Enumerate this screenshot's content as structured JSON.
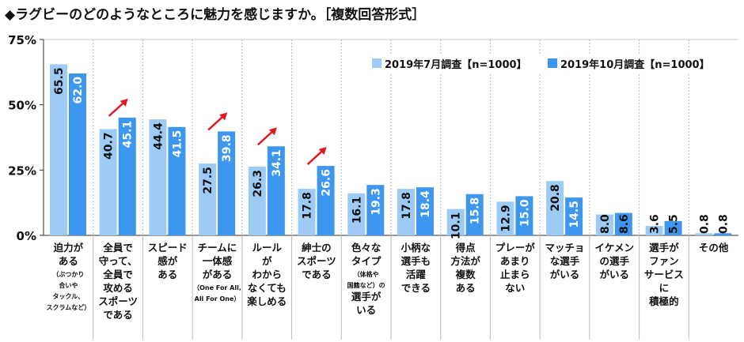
{
  "chart_data": {
    "type": "bar",
    "title": "◆ラグビーのどのようなところに魅力を感じますか。［複数回答形式］",
    "ylim": [
      0,
      75
    ],
    "yticks": [
      "0%",
      "25%",
      "50%",
      "75%"
    ],
    "ytick_values": [
      0,
      25,
      50,
      75
    ],
    "legend_position": "top-right",
    "colors": {
      "s0": "#9DCBF5",
      "s1": "#3D97EE",
      "arrow": "#E0191F"
    },
    "series": [
      {
        "name": "2019年7月調査【n=1000】",
        "values": [
          "65.5",
          "40.7",
          "44.4",
          "27.5",
          "26.3",
          "17.8",
          "16.1",
          "17.8",
          "10.1",
          "12.9",
          "20.8",
          "8.0",
          "3.6",
          "0.8"
        ]
      },
      {
        "name": "2019年10月調査【n=1000】",
        "values": [
          "62.0",
          "45.1",
          "41.5",
          "39.8",
          "34.1",
          "26.6",
          "19.3",
          "18.4",
          "15.8",
          "15.0",
          "14.5",
          "8.6",
          "5.5",
          "0.8"
        ]
      }
    ],
    "increase_arrows": [
      1,
      3,
      4,
      5
    ],
    "categories": [
      {
        "lines": [
          {
            "t": "迫力が"
          },
          {
            "t": "ある"
          },
          {
            "t": "（ぶつかり",
            "s": 1
          },
          {
            "t": "合いや",
            "s": 1
          },
          {
            "t": "タックル、",
            "s": 1
          },
          {
            "t": "スクラムなど）",
            "s": 1
          }
        ]
      },
      {
        "lines": [
          {
            "t": "全員で"
          },
          {
            "t": "守って、"
          },
          {
            "t": "全員で"
          },
          {
            "t": "攻める"
          },
          {
            "t": "スポーツ"
          },
          {
            "t": "である"
          }
        ]
      },
      {
        "lines": [
          {
            "t": "スピード"
          },
          {
            "t": "感が"
          },
          {
            "t": "ある"
          }
        ]
      },
      {
        "lines": [
          {
            "t": "チームに"
          },
          {
            "t": "一体感"
          },
          {
            "t": "がある"
          },
          {
            "t": "（One For All,",
            "s": 1
          },
          {
            "t": "All For One）",
            "s": 1
          }
        ]
      },
      {
        "lines": [
          {
            "t": "ルール"
          },
          {
            "t": "が"
          },
          {
            "t": "わから"
          },
          {
            "t": "なくても"
          },
          {
            "t": "楽しめる"
          }
        ]
      },
      {
        "lines": [
          {
            "t": "紳士の"
          },
          {
            "t": "スポーツ"
          },
          {
            "t": "である"
          }
        ]
      },
      {
        "lines": [
          {
            "t": "色々な"
          },
          {
            "t": "タイプ"
          },
          {
            "t": "（体格や",
            "s": 1
          },
          {
            "t": "国籍など）の",
            "s": 1
          },
          {
            "t": "選手が"
          },
          {
            "t": "いる"
          }
        ]
      },
      {
        "lines": [
          {
            "t": "小柄な"
          },
          {
            "t": "選手も"
          },
          {
            "t": "活躍"
          },
          {
            "t": "できる"
          }
        ]
      },
      {
        "lines": [
          {
            "t": "得点"
          },
          {
            "t": "方法が"
          },
          {
            "t": "複数"
          },
          {
            "t": "ある"
          }
        ]
      },
      {
        "lines": [
          {
            "t": "プレーが"
          },
          {
            "t": "あまり"
          },
          {
            "t": "止まら"
          },
          {
            "t": "ない"
          }
        ]
      },
      {
        "lines": [
          {
            "t": "マッチョ"
          },
          {
            "t": "な選手"
          },
          {
            "t": "がいる"
          }
        ]
      },
      {
        "lines": [
          {
            "t": "イケメン"
          },
          {
            "t": "の選手"
          },
          {
            "t": "がいる"
          }
        ]
      },
      {
        "lines": [
          {
            "t": "選手が"
          },
          {
            "t": "ファン"
          },
          {
            "t": "サービス"
          },
          {
            "t": "に"
          },
          {
            "t": "積極的"
          }
        ]
      },
      {
        "lines": [
          {
            "t": "その他"
          }
        ]
      }
    ]
  }
}
